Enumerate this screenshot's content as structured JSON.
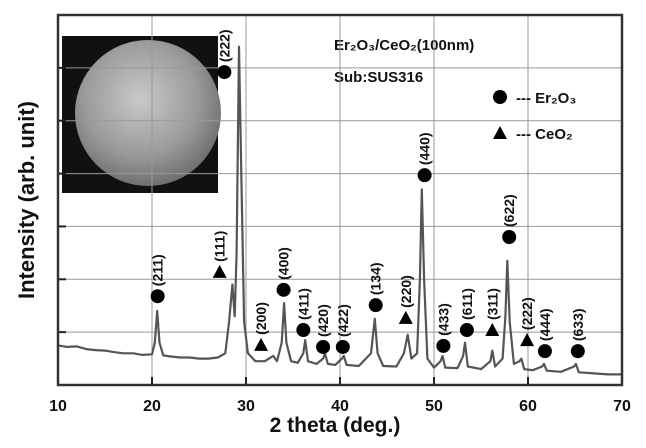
{
  "chart_data": {
    "type": "line",
    "xlabel": "2 theta (deg.)",
    "ylabel": "Intensity (arb. unit)",
    "notes": [
      "Er₂O₃/CeO₂(100nm)",
      "Sub:SUS316"
    ],
    "xlim": [
      10,
      70
    ],
    "xticks": [
      10,
      20,
      30,
      40,
      50,
      60,
      70
    ],
    "ylim": [
      0,
      7
    ],
    "yticks": [
      1,
      2,
      3,
      4,
      5,
      6
    ],
    "grid": true,
    "x": [
      10,
      11,
      12,
      13,
      14,
      15,
      16,
      17,
      18,
      19,
      20,
      20.3,
      20.55,
      20.8,
      21.2,
      22,
      23,
      24,
      25,
      26,
      27,
      27.8,
      28.2,
      28.55,
      28.8,
      29.0,
      29.25,
      29.5,
      29.8,
      30.2,
      31,
      32,
      32.9,
      33.3,
      33.8,
      34.05,
      34.3,
      34.8,
      35.5,
      36.1,
      36.3,
      36.6,
      37.5,
      38.2,
      38.4,
      38.7,
      39.5,
      40.2,
      40.4,
      40.7,
      42,
      43.3,
      43.7,
      44.0,
      44.6,
      46,
      46.8,
      47.2,
      47.6,
      48.2,
      48.5,
      48.7,
      48.95,
      49.3,
      50,
      50.7,
      50.9,
      51.2,
      52.5,
      53.1,
      53.3,
      53.6,
      55,
      56,
      56.2,
      56.5,
      57.3,
      57.6,
      57.8,
      58.05,
      58.5,
      59.1,
      59.3,
      59.6,
      60.5,
      61.5,
      61.7,
      62,
      63.5,
      64.9,
      65.1,
      65.4,
      67,
      68.5,
      70
    ],
    "series": [
      {
        "color": "#555555",
        "values": [
          0.75,
          0.72,
          0.73,
          0.68,
          0.66,
          0.65,
          0.62,
          0.6,
          0.6,
          0.57,
          0.58,
          0.8,
          1.4,
          0.8,
          0.56,
          0.54,
          0.52,
          0.52,
          0.5,
          0.5,
          0.52,
          0.6,
          1.2,
          1.9,
          1.3,
          2.5,
          6.4,
          4.0,
          1.2,
          0.6,
          0.45,
          0.45,
          0.55,
          0.45,
          0.8,
          1.55,
          0.8,
          0.45,
          0.42,
          0.6,
          0.85,
          0.45,
          0.4,
          0.5,
          0.6,
          0.4,
          0.38,
          0.5,
          0.55,
          0.38,
          0.36,
          0.6,
          1.25,
          0.6,
          0.36,
          0.35,
          0.6,
          0.95,
          0.5,
          0.6,
          2.0,
          3.7,
          2.0,
          0.5,
          0.33,
          0.45,
          0.55,
          0.33,
          0.32,
          0.55,
          0.8,
          0.35,
          0.3,
          0.45,
          0.65,
          0.35,
          0.5,
          1.3,
          2.35,
          1.2,
          0.4,
          0.45,
          0.5,
          0.3,
          0.28,
          0.35,
          0.4,
          0.27,
          0.25,
          0.35,
          0.4,
          0.24,
          0.22,
          0.2,
          0.2
        ]
      }
    ],
    "legend": [
      {
        "marker": "circle",
        "label": "--- Er₂O₃"
      },
      {
        "marker": "triangle",
        "label": "--- CeO₂"
      }
    ],
    "annotations": [
      {
        "x": 20.6,
        "y": 1.68,
        "label": "(211)",
        "marker": "circle"
      },
      {
        "x": 27.2,
        "y": 2.14,
        "label": "(111)",
        "marker": "triangle"
      },
      {
        "x": 27.7,
        "y": 5.92,
        "label": "(222)",
        "marker": "circle"
      },
      {
        "x": 31.6,
        "y": 0.76,
        "label": "(200)",
        "marker": "triangle"
      },
      {
        "x": 34.0,
        "y": 1.8,
        "label": "(400)",
        "marker": "circle"
      },
      {
        "x": 36.1,
        "y": 1.04,
        "label": "(411)",
        "marker": "circle"
      },
      {
        "x": 38.2,
        "y": 0.72,
        "label": "(420)",
        "marker": "circle"
      },
      {
        "x": 40.3,
        "y": 0.72,
        "label": "(422)",
        "marker": "circle"
      },
      {
        "x": 43.8,
        "y": 1.51,
        "label": "(134)",
        "marker": "circle"
      },
      {
        "x": 47.0,
        "y": 1.27,
        "label": "(220)",
        "marker": "triangle"
      },
      {
        "x": 49.0,
        "y": 3.97,
        "label": "(440)",
        "marker": "circle"
      },
      {
        "x": 51.0,
        "y": 0.74,
        "label": "(433)",
        "marker": "circle"
      },
      {
        "x": 53.5,
        "y": 1.04,
        "label": "(611)",
        "marker": "circle"
      },
      {
        "x": 56.2,
        "y": 1.04,
        "label": "(311)",
        "marker": "triangle"
      },
      {
        "x": 58.0,
        "y": 2.8,
        "label": "(622)",
        "marker": "circle"
      },
      {
        "x": 59.9,
        "y": 0.85,
        "label": "(222)",
        "marker": "triangle"
      },
      {
        "x": 61.8,
        "y": 0.64,
        "label": "(444)",
        "marker": "circle"
      },
      {
        "x": 65.3,
        "y": 0.64,
        "label": "(633)",
        "marker": "circle"
      }
    ]
  }
}
